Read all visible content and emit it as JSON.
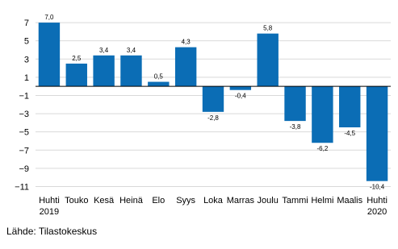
{
  "chart_data": {
    "type": "bar",
    "categories": [
      "Huhti\n2019",
      "Touko",
      "Kesä",
      "Heinä",
      "Elo",
      "Syys",
      "Loka",
      "Marras",
      "Joulu",
      "Tammi",
      "Helmi",
      "Maalis",
      "Huhti\n2020"
    ],
    "values": [
      7.0,
      2.5,
      3.4,
      3.4,
      0.5,
      4.3,
      -2.8,
      -0.4,
      5.8,
      -3.8,
      -6.2,
      -4.5,
      -10.4
    ],
    "value_labels": [
      "7,0",
      "2,5",
      "3,4",
      "3,4",
      "0,5",
      "4,3",
      "-2,8",
      "-0,4",
      "5,8",
      "-3,8",
      "-6,2",
      "-4,5",
      "-10,4"
    ],
    "color": "#0b6db5",
    "ylim": [
      -11.4,
      8.6
    ],
    "yticks": [
      7,
      5,
      3,
      1,
      {
        "value": -1,
        "label": "−1"
      },
      {
        "value": -3,
        "label": "−3"
      },
      {
        "value": -5,
        "label": "−5"
      },
      {
        "value": -7,
        "label": "−7"
      },
      {
        "value": -9,
        "label": "−9"
      },
      {
        "value": -11,
        "label": "−11"
      }
    ],
    "grid": true,
    "source": "Lähde: Tilastokeskus"
  }
}
